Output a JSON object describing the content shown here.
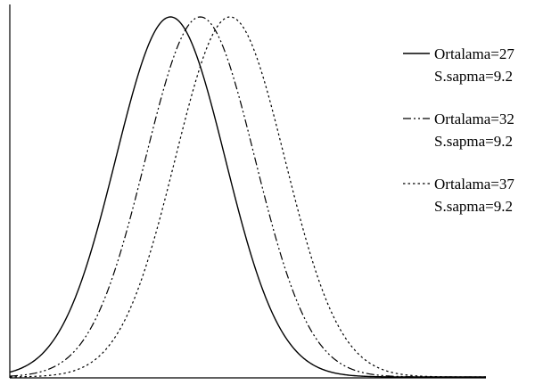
{
  "chart_data": {
    "type": "line",
    "title": "",
    "xlabel": "",
    "ylabel": "",
    "grid": false,
    "legend_position": "right",
    "x_range": [
      0,
      80
    ],
    "series": [
      {
        "label_line1": "Ortalama=27",
        "label_line2": "S.sapma=9.2",
        "mean": 27,
        "sd": 9.2,
        "style": "solid"
      },
      {
        "label_line1": "Ortalama=32",
        "label_line2": "S.sapma=9.2",
        "mean": 32,
        "sd": 9.2,
        "style": "dash-dot-dot"
      },
      {
        "label_line1": "Ortalama=37",
        "label_line2": "S.sapma=9.2",
        "mean": 37,
        "sd": 9.2,
        "style": "dotted"
      }
    ]
  }
}
